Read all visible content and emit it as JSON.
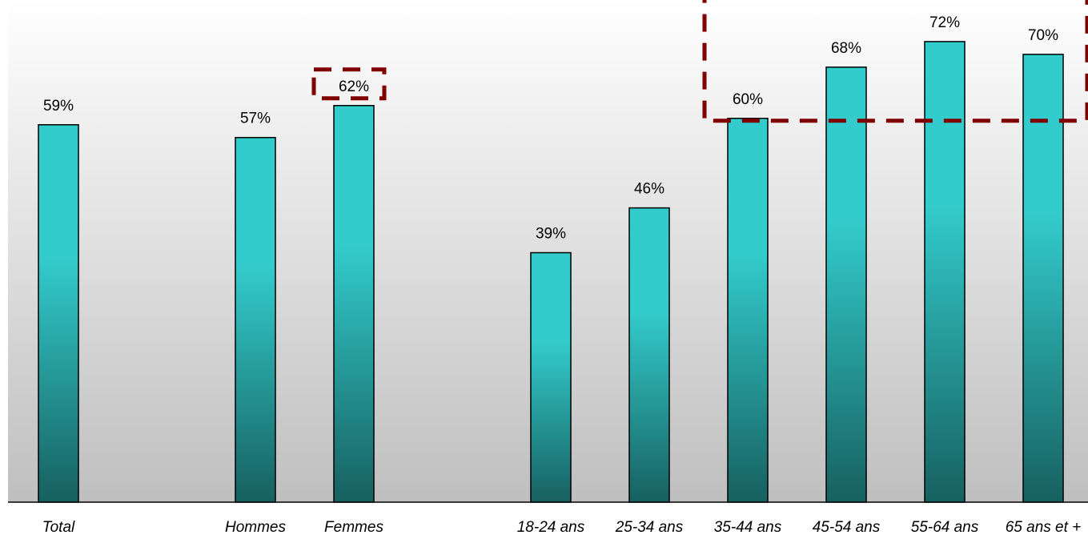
{
  "chart_data": {
    "type": "bar",
    "categories": [
      "Total",
      "",
      "Hommes",
      "Femmes",
      "",
      "18-24 ans",
      "25-34 ans",
      "35-44 ans",
      "45-54 ans",
      "55-64 ans",
      "65 ans et +"
    ],
    "values": [
      59,
      null,
      57,
      62,
      null,
      39,
      46,
      60,
      68,
      72,
      70
    ],
    "value_labels": [
      "59%",
      "",
      "57%",
      "62%",
      "",
      "39%",
      "46%",
      "60%",
      "68%",
      "72%",
      "70%"
    ],
    "title": "",
    "xlabel": "",
    "ylabel": "",
    "ylim": [
      0,
      80
    ],
    "grid": false,
    "legend": "none",
    "highlighted": [
      "Femmes",
      "35-44 ans",
      "45-54 ans",
      "55-64 ans",
      "65 ans et +"
    ]
  },
  "colors": {
    "bar_top": "#33cccc",
    "bar_bottom": "#176060",
    "plot_bg_top": "#ffffff",
    "plot_bg_bottom": "#bfbfbf",
    "highlight": "#7f0000"
  }
}
